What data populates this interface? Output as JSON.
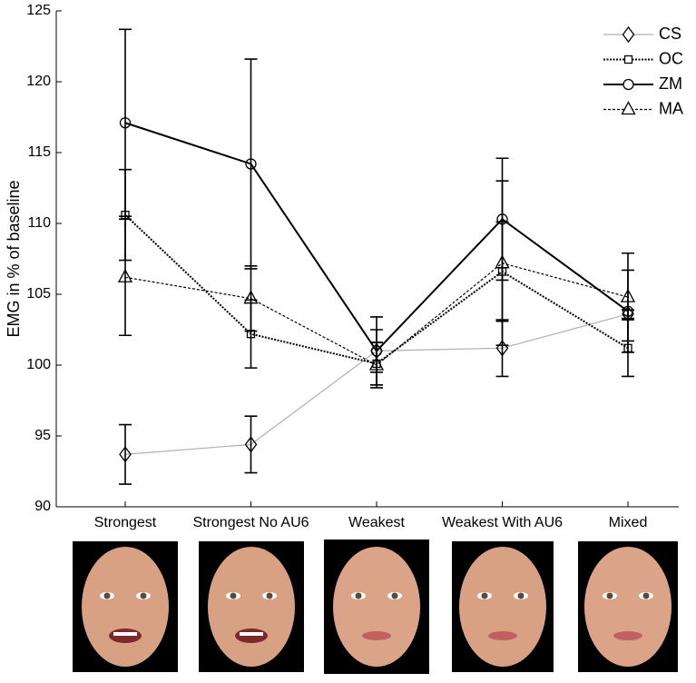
{
  "chart_data": {
    "type": "line",
    "y_label": "EMG in % of baseline",
    "categories": [
      "Strongest",
      "Strongest No AU6",
      "Weakest",
      "Weakest With AU6",
      "Mixed"
    ],
    "ylim": [
      90,
      125
    ],
    "yticks": [
      90,
      95,
      100,
      105,
      110,
      115,
      120,
      125
    ],
    "legend": "upper right",
    "series": [
      {
        "name": "CS",
        "color": "#b0b0b0",
        "marker": "diamond",
        "dash": "solid",
        "width": 1.2,
        "values": [
          93.7,
          94.4,
          101.0,
          101.2,
          103.6
        ],
        "errors": [
          2.1,
          2.0,
          1.5,
          2.0,
          0.3
        ]
      },
      {
        "name": "OC",
        "color": "#000000",
        "marker": "square",
        "dash": "dotted",
        "width": 2,
        "values": [
          110.6,
          102.2,
          100.1,
          106.6,
          101.2
        ],
        "errors": [
          3.2,
          2.4,
          1.5,
          3.5,
          2.0
        ]
      },
      {
        "name": "ZM",
        "color": "#000000",
        "marker": "circle",
        "dash": "solid",
        "width": 2,
        "values": [
          117.1,
          114.2,
          101.0,
          110.3,
          103.8
        ],
        "errors": [
          6.6,
          7.4,
          2.4,
          4.3,
          2.9
        ]
      },
      {
        "name": "MA",
        "color": "#000000",
        "marker": "triangle",
        "dash": "dashed",
        "width": 1.2,
        "values": [
          106.2,
          104.7,
          100.0,
          107.2,
          104.8
        ],
        "errors": [
          4.1,
          2.3,
          1.6,
          5.8,
          3.1
        ]
      }
    ]
  }
}
